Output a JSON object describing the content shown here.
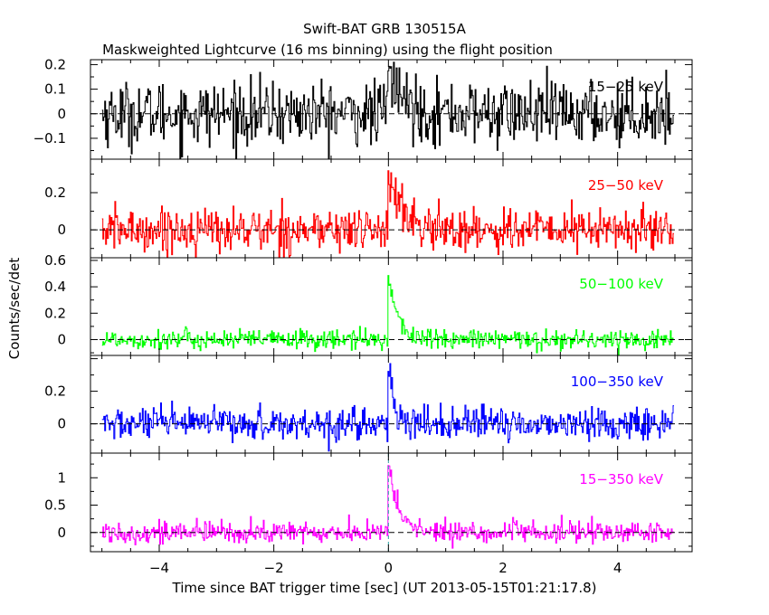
{
  "chart_data": {
    "type": "line",
    "title": "Swift-BAT GRB 130515A",
    "subtitle": "Maskweighted Lightcurve (16 ms binning) using the flight position",
    "xlabel": "Time since BAT trigger time [sec] (UT 2013-05-15T01:21:17.8)",
    "ylabel": "Counts/sec/det",
    "xlim": [
      -5.2,
      5.3
    ],
    "xticks": [
      -4,
      -2,
      0,
      2,
      4
    ],
    "xtick_labels": [
      "−4",
      "−2",
      "0",
      "2",
      "4"
    ],
    "bin_size_sec": 0.016,
    "trigger_marker_x": 0,
    "panels": [
      {
        "band": "15−25 keV",
        "color": "#000000",
        "ylim": [
          -0.185,
          0.22
        ],
        "yticks": [
          -0.1,
          0,
          0.1,
          0.2
        ],
        "ytick_labels": [
          "−0.1",
          "0",
          "0.1",
          "0.2"
        ],
        "noise_sigma": 0.065,
        "pulse": [
          {
            "start": 0.0,
            "peak": 0.17,
            "rise": 0.03,
            "decay": 0.25
          }
        ]
      },
      {
        "band": "25−50 keV",
        "color": "#ff0000",
        "ylim": [
          -0.15,
          0.38
        ],
        "yticks": [
          0,
          0.2
        ],
        "ytick_labels": [
          "0",
          "0.2"
        ],
        "noise_sigma": 0.06,
        "pulse": [
          {
            "start": 0.0,
            "peak": 0.32,
            "rise": 0.02,
            "decay": 0.2
          }
        ]
      },
      {
        "band": "50−100 keV",
        "color": "#00ff00",
        "ylim": [
          -0.12,
          0.62
        ],
        "yticks": [
          0,
          0.2,
          0.4,
          0.6
        ],
        "ytick_labels": [
          "0",
          "0.2",
          "0.4",
          "0.6"
        ],
        "noise_sigma": 0.038,
        "pulse": [
          {
            "start": 0.0,
            "peak": 0.5,
            "rise": 0.02,
            "decay": 0.15
          }
        ]
      },
      {
        "band": "100−350 keV",
        "color": "#0000ff",
        "ylim": [
          -0.18,
          0.42
        ],
        "yticks": [
          0,
          0.2
        ],
        "ytick_labels": [
          "0",
          "0.2"
        ],
        "noise_sigma": 0.05,
        "pulse": [
          {
            "start": 0.0,
            "peak": 0.32,
            "rise": 0.015,
            "decay": 0.08
          }
        ]
      },
      {
        "band": "15−350 keV",
        "color": "#ff00ff",
        "ylim": [
          -0.35,
          1.45
        ],
        "yticks": [
          0,
          0.5,
          1
        ],
        "ytick_labels": [
          "0",
          "0.5",
          "1"
        ],
        "noise_sigma": 0.1,
        "pulse": [
          {
            "start": 0.0,
            "peak": 1.2,
            "rise": 0.02,
            "decay": 0.18
          }
        ]
      }
    ]
  }
}
